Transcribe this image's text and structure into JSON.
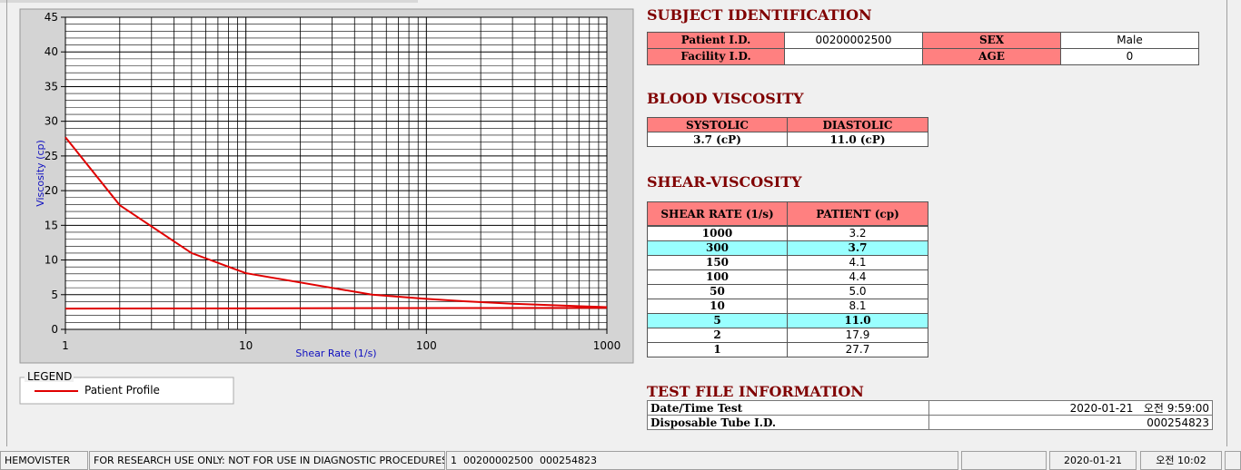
{
  "chart_data": {
    "type": "line",
    "xlabel": "Shear Rate (1/s)",
    "ylabel": "Viscosity (cp)",
    "xscale": "log",
    "xlim": [
      1,
      1000
    ],
    "xticks": [
      1,
      10,
      100,
      1000
    ],
    "xminor": [
      2,
      3,
      4,
      5,
      6,
      7,
      8,
      9,
      20,
      30,
      40,
      50,
      60,
      70,
      80,
      90,
      200,
      300,
      400,
      500,
      600,
      700,
      800,
      900
    ],
    "ylim": [
      0,
      45
    ],
    "yticks": [
      0,
      5,
      10,
      15,
      20,
      25,
      30,
      35,
      40,
      45
    ],
    "yminor": [
      1,
      2,
      3,
      4,
      6,
      7,
      8,
      9,
      11,
      12,
      13,
      14,
      16,
      17,
      18,
      19,
      21,
      22,
      23,
      24,
      26,
      27,
      28,
      29,
      31,
      32,
      33,
      34,
      36,
      37,
      38,
      39,
      41,
      42,
      43,
      44
    ],
    "grid": true,
    "legend_title": "LEGEND",
    "series": [
      {
        "name": "Patient Profile",
        "color": "#e00000",
        "x": [
          1,
          2,
          5,
          10,
          50,
          100,
          150,
          300,
          1000,
          1000,
          1,
          1000
        ],
        "values": [
          27.7,
          17.9,
          11.0,
          8.1,
          5.0,
          4.4,
          4.1,
          3.7,
          3.2,
          null,
          3.0,
          3.1
        ]
      }
    ]
  },
  "subject": {
    "title": "SUBJECT IDENTIFICATION",
    "patient_id": {
      "label": "Patient I.D.",
      "value": "00200002500"
    },
    "sex": {
      "label": "SEX",
      "value": "Male"
    },
    "facility_id": {
      "label": "Facility I.D."
    },
    "age": {
      "label": "AGE",
      "value": "0"
    }
  },
  "blood": {
    "title": "BLOOD VISCOSITY",
    "headers": [
      "SYSTOLIC",
      "DIASTOLIC"
    ],
    "values": [
      "3.7 (cP)",
      "11.0 (cP)"
    ]
  },
  "shear": {
    "title": "SHEAR-VISCOSITY",
    "headers": [
      "SHEAR RATE (1/s)",
      "PATIENT (cp)"
    ],
    "rows": [
      {
        "rate": "1000",
        "patient": "3.2",
        "highlight": false
      },
      {
        "rate": "300",
        "patient": "3.7",
        "highlight": true
      },
      {
        "rate": "150",
        "patient": "4.1",
        "highlight": false
      },
      {
        "rate": "100",
        "patient": "4.4",
        "highlight": false
      },
      {
        "rate": "50",
        "patient": "5.0",
        "highlight": false
      },
      {
        "rate": "10",
        "patient": "8.1",
        "highlight": false
      },
      {
        "rate": "5",
        "patient": "11.0",
        "highlight": true
      },
      {
        "rate": "2",
        "patient": "17.9",
        "highlight": false
      },
      {
        "rate": "1",
        "patient": "27.7",
        "highlight": false
      }
    ]
  },
  "test_file": {
    "title": "TEST FILE INFORMATION",
    "rows": [
      {
        "label": "Date/Time Test",
        "value": "2020-01-21   오전 9:59:00"
      },
      {
        "label": "Disposable Tube I.D.",
        "value": "000254823"
      }
    ]
  },
  "status_bar": [
    "HEMOVISTER",
    "FOR RESEARCH USE ONLY: NOT FOR USE IN DIAGNOSTIC PROCEDURES",
    "1  00200002500  000254823",
    "2020-01-21",
    "오전 10:02"
  ]
}
